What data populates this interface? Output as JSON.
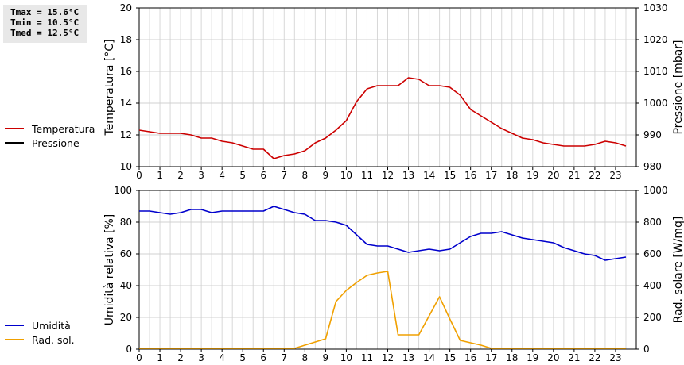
{
  "stats": {
    "tmax": "Tmax = 15.6°C",
    "tmin": "Tmin = 10.5°C",
    "tmed": "Tmed = 12.5°C"
  },
  "legend_top": [
    {
      "label": "Temperatura",
      "color": "#cc0000"
    },
    {
      "label": "Pressione",
      "color": "#000000"
    }
  ],
  "legend_bottom": [
    {
      "label": "Umidità",
      "color": "#0000cc"
    },
    {
      "label": "Rad. sol.",
      "color": "#f0a000"
    }
  ],
  "chart_data": [
    {
      "type": "line",
      "ylabel": "Temperatura [°C]",
      "y2label": "Pressione [mbar]",
      "ylim": [
        10,
        20
      ],
      "y2lim": [
        980,
        1030
      ],
      "xlim": [
        0,
        24
      ],
      "xticks": [
        "0",
        "1",
        "2",
        "3",
        "4",
        "5",
        "6",
        "7",
        "8",
        "9",
        "10",
        "11",
        "12",
        "13",
        "14",
        "15",
        "16",
        "17",
        "18",
        "19",
        "20",
        "21",
        "22",
        "23"
      ],
      "yticks": [
        "10",
        "12",
        "14",
        "16",
        "18",
        "20"
      ],
      "y2ticks": [
        "980",
        "990",
        "1000",
        "1010",
        "1020",
        "1030"
      ],
      "grid": true,
      "series": [
        {
          "name": "Temperatura",
          "color": "#cc0000",
          "axis": "left",
          "x": [
            0,
            0.5,
            1,
            1.5,
            2,
            2.5,
            3,
            3.5,
            4,
            4.5,
            5,
            5.5,
            6,
            6.5,
            7,
            7.5,
            8,
            8.5,
            9,
            9.5,
            10,
            10.5,
            11,
            11.5,
            12,
            12.5,
            13,
            13.5,
            14,
            14.5,
            15,
            15.5,
            16,
            16.5,
            17,
            17.5,
            18,
            18.5,
            19,
            19.5,
            20,
            20.5,
            21,
            21.5,
            22,
            22.5,
            23,
            23.5
          ],
          "values": [
            12.3,
            12.2,
            12.1,
            12.1,
            12.1,
            12.0,
            11.8,
            11.8,
            11.6,
            11.5,
            11.3,
            11.1,
            11.1,
            10.5,
            10.7,
            10.8,
            11.0,
            11.5,
            11.8,
            12.3,
            12.9,
            14.1,
            14.9,
            15.1,
            15.1,
            15.1,
            15.6,
            15.5,
            15.1,
            15.1,
            15.0,
            14.5,
            13.6,
            13.2,
            12.8,
            12.4,
            12.1,
            11.8,
            11.7,
            11.5,
            11.4,
            11.3,
            11.3,
            11.3,
            11.4,
            11.6,
            11.5,
            11.3
          ]
        }
      ]
    },
    {
      "type": "line",
      "ylabel": "Umidità relativa [%]",
      "y2label": "Rad. solare [W/mq]",
      "ylim": [
        0,
        100
      ],
      "y2lim": [
        0,
        1000
      ],
      "xlim": [
        0,
        24
      ],
      "xticks": [
        "0",
        "1",
        "2",
        "3",
        "4",
        "5",
        "6",
        "7",
        "8",
        "9",
        "10",
        "11",
        "12",
        "13",
        "14",
        "15",
        "16",
        "17",
        "18",
        "19",
        "20",
        "21",
        "22",
        "23"
      ],
      "yticks": [
        "0",
        "20",
        "40",
        "60",
        "80",
        "100"
      ],
      "y2ticks": [
        "0",
        "200",
        "400",
        "600",
        "800",
        "1000"
      ],
      "grid": true,
      "series": [
        {
          "name": "Umidità",
          "color": "#0000cc",
          "axis": "left",
          "x": [
            0,
            0.5,
            1,
            1.5,
            2,
            2.5,
            3,
            3.5,
            4,
            4.5,
            5,
            5.5,
            6,
            6.5,
            7,
            7.5,
            8,
            8.5,
            9,
            9.5,
            10,
            10.5,
            11,
            11.5,
            12,
            12.5,
            13,
            13.5,
            14,
            14.5,
            15,
            15.5,
            16,
            16.5,
            17,
            17.5,
            18,
            18.5,
            19,
            19.5,
            20,
            20.5,
            21,
            21.5,
            22,
            22.5,
            23,
            23.5
          ],
          "values": [
            87,
            87,
            86,
            85,
            86,
            88,
            88,
            86,
            87,
            87,
            87,
            87,
            87,
            90,
            88,
            86,
            85,
            81,
            81,
            80,
            78,
            72,
            66,
            65,
            65,
            63,
            61,
            62,
            63,
            62,
            63,
            67,
            71,
            73,
            73,
            74,
            72,
            70,
            69,
            68,
            67,
            64,
            62,
            60,
            59,
            56,
            57,
            58
          ]
        },
        {
          "name": "Rad. sol.",
          "color": "#f0a000",
          "axis": "right",
          "x": [
            0,
            1,
            2,
            3,
            4,
            5,
            6,
            7,
            7.5,
            8,
            8.5,
            9,
            9.5,
            10,
            10.5,
            11,
            11.5,
            12,
            12.5,
            13,
            13.5,
            14,
            14.5,
            15,
            15.5,
            16,
            16.5,
            17,
            18,
            19,
            20,
            21,
            22,
            23,
            23.5
          ],
          "values": [
            5,
            5,
            5,
            5,
            5,
            5,
            5,
            5,
            5,
            25,
            45,
            65,
            300,
            370,
            420,
            465,
            480,
            490,
            90,
            90,
            90,
            210,
            330,
            190,
            55,
            40,
            25,
            5,
            5,
            5,
            5,
            5,
            5,
            5,
            5
          ]
        }
      ]
    }
  ]
}
